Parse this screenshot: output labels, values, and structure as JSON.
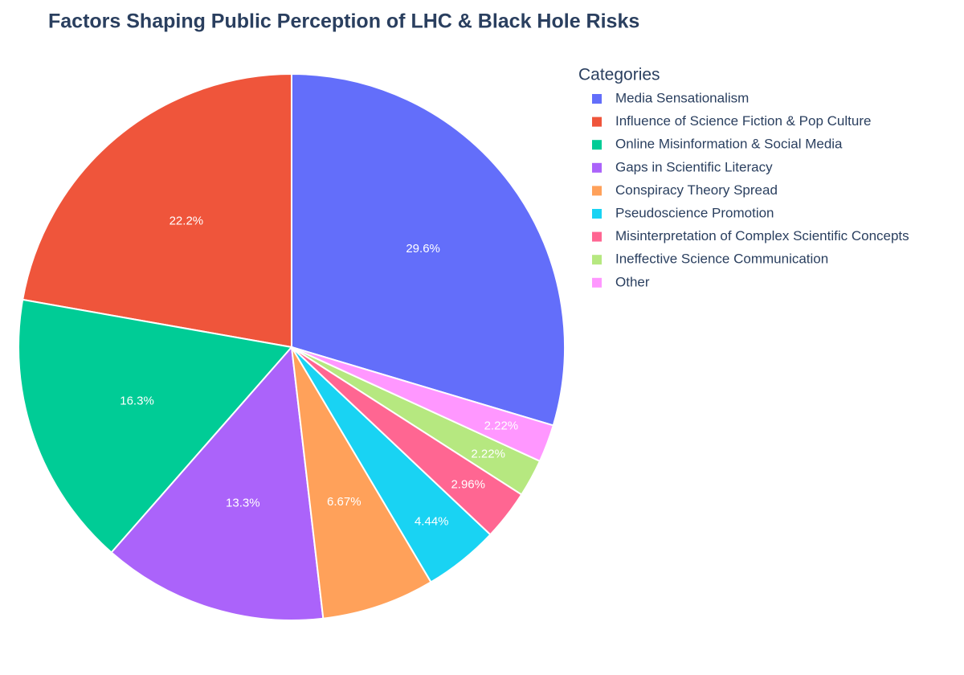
{
  "chart_data": {
    "type": "pie",
    "title": "Factors Shaping Public Perception of LHC & Black Hole Risks",
    "legend_title": "Categories",
    "categories": [
      "Media Sensationalism",
      "Influence of Science Fiction & Pop Culture",
      "Online Misinformation & Social Media",
      "Gaps in Scientific Literacy",
      "Conspiracy Theory Spread",
      "Pseudoscience Promotion",
      "Misinterpretation of Complex Scientific Concepts",
      "Ineffective Science Communication",
      "Other"
    ],
    "values": [
      29.6,
      22.2,
      16.3,
      13.3,
      6.67,
      4.44,
      2.96,
      2.22,
      2.22
    ],
    "value_labels": [
      "29.6%",
      "22.2%",
      "16.3%",
      "13.3%",
      "6.67%",
      "4.44%",
      "2.96%",
      "2.22%",
      "2.22%"
    ],
    "colors": [
      "#636efa",
      "#ef553b",
      "#00cc96",
      "#ab63fa",
      "#ffa15a",
      "#19d3f3",
      "#ff6692",
      "#b6e880",
      "#ff97ff"
    ],
    "legend": "top-right"
  }
}
